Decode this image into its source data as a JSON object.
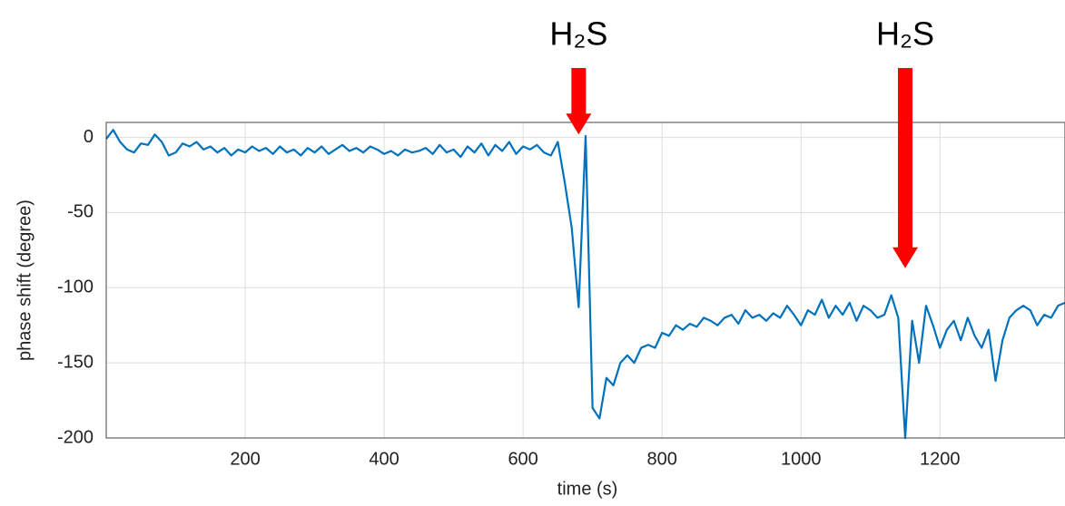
{
  "chart_data": {
    "type": "line",
    "x_label": "time (s)",
    "y_label": "phase shift (degree)",
    "x": [
      0,
      10,
      20,
      30,
      40,
      50,
      60,
      70,
      80,
      90,
      100,
      110,
      120,
      130,
      140,
      150,
      160,
      170,
      180,
      190,
      200,
      210,
      220,
      230,
      240,
      250,
      260,
      270,
      280,
      290,
      300,
      310,
      320,
      330,
      340,
      350,
      360,
      370,
      380,
      390,
      400,
      410,
      420,
      430,
      440,
      450,
      460,
      470,
      480,
      490,
      500,
      510,
      520,
      530,
      540,
      550,
      560,
      570,
      580,
      590,
      600,
      610,
      620,
      630,
      640,
      650,
      660,
      670,
      680,
      690,
      700,
      710,
      720,
      730,
      740,
      750,
      760,
      770,
      780,
      790,
      800,
      810,
      820,
      830,
      840,
      850,
      860,
      870,
      880,
      890,
      900,
      910,
      920,
      930,
      940,
      950,
      960,
      970,
      980,
      990,
      1000,
      1010,
      1020,
      1030,
      1040,
      1050,
      1060,
      1070,
      1080,
      1090,
      1100,
      1110,
      1120,
      1130,
      1140,
      1150,
      1160,
      1170,
      1180,
      1190,
      1200,
      1210,
      1220,
      1230,
      1240,
      1250,
      1260,
      1270,
      1280,
      1290,
      1300,
      1310,
      1320,
      1330,
      1340,
      1350,
      1360,
      1370,
      1380
    ],
    "series": [
      {
        "color": "#0072bd",
        "values": [
          -1,
          5,
          -3,
          -8,
          -10,
          -4,
          -5,
          2,
          -3,
          -12,
          -10,
          -4,
          -6,
          -3,
          -8,
          -6,
          -10,
          -7,
          -12,
          -8,
          -10,
          -6,
          -9,
          -7,
          -11,
          -6,
          -10,
          -8,
          -12,
          -7,
          -10,
          -6,
          -11,
          -8,
          -5,
          -9,
          -7,
          -10,
          -6,
          -8,
          -11,
          -9,
          -12,
          -8,
          -10,
          -9,
          -7,
          -11,
          -5,
          -10,
          -8,
          -13,
          -6,
          -10,
          -4,
          -12,
          -5,
          -9,
          -3,
          -11,
          -6,
          -8,
          -5,
          -10,
          -12,
          -3,
          -30,
          -60,
          -113,
          1,
          -180,
          -187,
          -160,
          -165,
          -150,
          -145,
          -150,
          -140,
          -138,
          -140,
          -130,
          -132,
          -125,
          -128,
          -124,
          -126,
          -120,
          -122,
          -125,
          -120,
          -118,
          -124,
          -115,
          -120,
          -118,
          -122,
          -117,
          -120,
          -112,
          -118,
          -125,
          -115,
          -118,
          -108,
          -120,
          -112,
          -118,
          -110,
          -122,
          -112,
          -115,
          -120,
          -118,
          -105,
          -120,
          -200,
          -122,
          -150,
          -112,
          -125,
          -140,
          -128,
          -122,
          -135,
          -120,
          -132,
          -140,
          -128,
          -162,
          -135,
          -120,
          -115,
          -112,
          -115,
          -125,
          -118,
          -120,
          -112,
          -110
        ]
      }
    ],
    "xlim": [
      0,
      1380
    ],
    "ylim": [
      -200,
      10
    ],
    "xticks": [
      200,
      400,
      600,
      800,
      1000,
      1200
    ],
    "yticks": [
      0,
      -50,
      -100,
      -150,
      -200
    ],
    "grid": true,
    "annotations": [
      {
        "label": "H₂S",
        "x": 680,
        "y": 2,
        "color": "#ff0000"
      },
      {
        "label": "H₂S",
        "x": 1150,
        "y": -87,
        "color": "#ff0000"
      }
    ]
  }
}
